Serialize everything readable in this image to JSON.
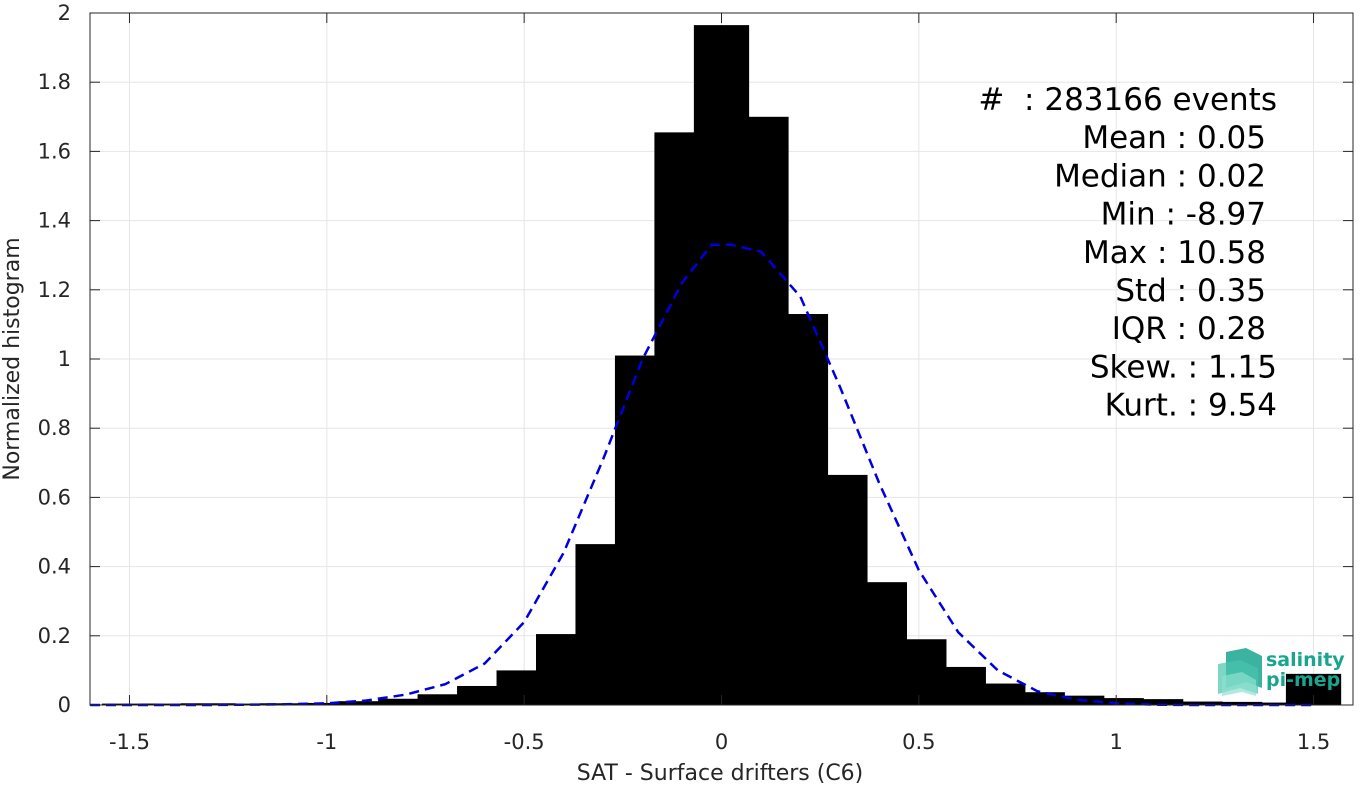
{
  "chart_data": {
    "type": "bar",
    "xlabel": "SAT - Surface drifters (C6)",
    "ylabel": "Normalized histogram",
    "xlim": [
      -1.6,
      1.6
    ],
    "ylim": [
      0,
      2
    ],
    "x_ticks": [
      -1.5,
      -1,
      -0.5,
      0,
      0.5,
      1,
      1.5
    ],
    "x_tick_labels": [
      "-1.5",
      "-1",
      "-0.5",
      "0",
      "0.5",
      "1",
      "1.5"
    ],
    "y_ticks": [
      0,
      0.2,
      0.4,
      0.6,
      0.8,
      1,
      1.2,
      1.4,
      1.6,
      1.8,
      2
    ],
    "y_tick_labels": [
      "0",
      "0.2",
      "0.4",
      "0.6",
      "0.8",
      "1",
      "1.2",
      "1.4",
      "1.6",
      "1.8",
      "2"
    ],
    "grid": true,
    "bar_color": "#000000",
    "bars": {
      "x": [
        -1.5,
        -1.4,
        -1.3,
        -1.2,
        -1.1,
        -1.0,
        -0.9,
        -0.8,
        -0.7,
        -0.6,
        -0.5,
        -0.4,
        -0.3,
        -0.2,
        -0.1,
        0.0,
        0.1,
        0.2,
        0.3,
        0.4,
        0.5,
        0.6,
        0.7,
        0.8,
        0.9,
        1.0,
        1.1,
        1.2,
        1.3,
        1.4,
        1.5
      ],
      "values": [
        0.004,
        0.004,
        0.005,
        0.004,
        0.005,
        0.006,
        0.011,
        0.018,
        0.031,
        0.055,
        0.1,
        0.205,
        0.465,
        1.01,
        1.655,
        1.965,
        1.7,
        1.13,
        0.665,
        0.355,
        0.19,
        0.11,
        0.062,
        0.037,
        0.027,
        0.02,
        0.017,
        0.01,
        0.009,
        0.007,
        0.09
      ]
    },
    "fit_curve": {
      "style": "dashed",
      "color": "#0000dd",
      "x": [
        -1.6,
        -1.5,
        -1.4,
        -1.3,
        -1.2,
        -1.1,
        -1.0,
        -0.9,
        -0.8,
        -0.7,
        -0.6,
        -0.5,
        -0.4,
        -0.3,
        -0.2,
        -0.1,
        -0.025,
        0.025,
        0.1,
        0.2,
        0.3,
        0.4,
        0.5,
        0.6,
        0.7,
        0.8,
        0.9,
        1.0,
        1.1,
        1.2,
        1.3,
        1.4,
        1.5
      ],
      "y": [
        0.0,
        0.0,
        0.0,
        0.0,
        0.001,
        0.002,
        0.005,
        0.013,
        0.03,
        0.06,
        0.12,
        0.24,
        0.44,
        0.71,
        1.0,
        1.22,
        1.33,
        1.33,
        1.31,
        1.18,
        0.92,
        0.64,
        0.39,
        0.21,
        0.1,
        0.04,
        0.015,
        0.005,
        0.001,
        0.0,
        0.0,
        0.0,
        0.0
      ]
    },
    "annotations": [
      "#  : 283166 events",
      "Mean : 0.05",
      "Median : 0.02",
      "Min : -8.97",
      "Max : 10.58",
      "Std : 0.35",
      "IQR : 0.28",
      "Skew. : 1.15",
      "Kurt. : 9.54"
    ]
  },
  "logo": {
    "line1": "salinity",
    "line2": "pi-mep",
    "color": "#1aa58f"
  }
}
